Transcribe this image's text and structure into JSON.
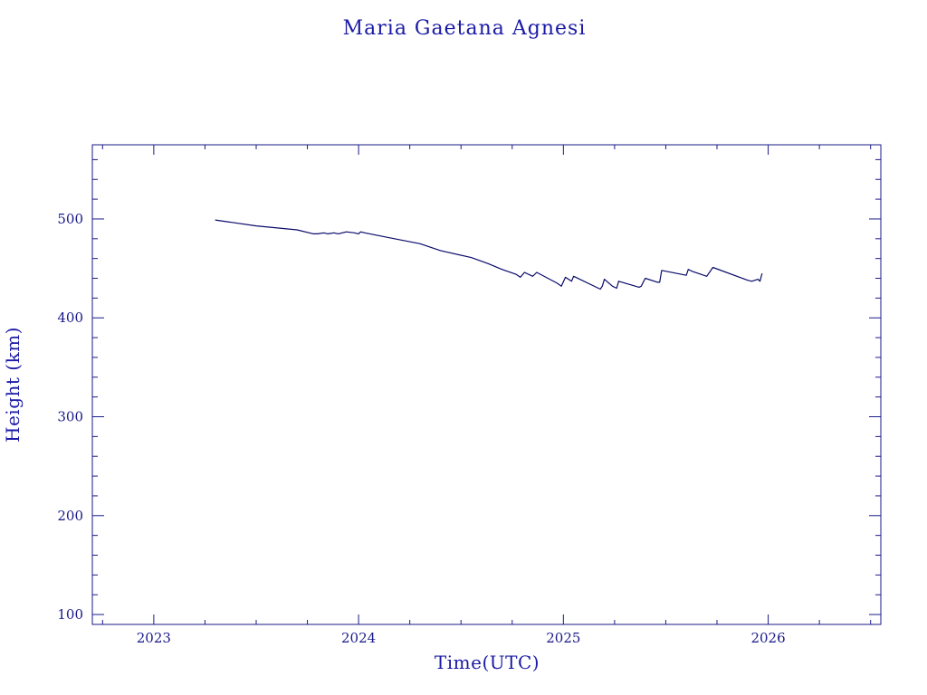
{
  "chart_data": {
    "type": "line",
    "title": "Maria Gaetana Agnesi",
    "xlabel": "Time(UTC)",
    "ylabel": "Height (km)",
    "xlim": [
      2022.7,
      2026.55
    ],
    "ylim": [
      90,
      575
    ],
    "x_ticks": [
      {
        "value": 2023,
        "label": "2023"
      },
      {
        "value": 2024,
        "label": "2024"
      },
      {
        "value": 2025,
        "label": "2025"
      },
      {
        "value": 2026,
        "label": "2026"
      }
    ],
    "y_ticks": [
      {
        "value": 100,
        "label": "100"
      },
      {
        "value": 200,
        "label": "200"
      },
      {
        "value": 300,
        "label": "300"
      },
      {
        "value": 400,
        "label": "400"
      },
      {
        "value": 500,
        "label": "500"
      }
    ],
    "grid": false,
    "colors": {
      "text": "#1a1aa6",
      "axis": "#1a1a8a",
      "line": "#0a0a6a"
    },
    "series": [
      {
        "x": [
          2023.3,
          2023.5,
          2023.7,
          2023.78,
          2023.8,
          2023.83,
          2023.85,
          2023.88,
          2023.9,
          2023.94,
          2023.98,
          2024.0,
          2024.01,
          2024.03,
          2024.15,
          2024.3,
          2024.4,
          2024.55,
          2024.63,
          2024.7,
          2024.77,
          2024.79,
          2024.81,
          2024.85,
          2024.87,
          2024.97,
          2024.99,
          2025.01,
          2025.04,
          2025.05,
          2025.18,
          2025.19,
          2025.2,
          2025.24,
          2025.26,
          2025.27,
          2025.37,
          2025.38,
          2025.4,
          2025.46,
          2025.47,
          2025.48,
          2025.6,
          2025.61,
          2025.63,
          2025.7,
          2025.73,
          2025.9,
          2025.92,
          2025.95,
          2025.96,
          2025.97
        ],
        "y": [
          499,
          493,
          489,
          485,
          485,
          486,
          485,
          486,
          485,
          487,
          486,
          485,
          487,
          486,
          481,
          475,
          468,
          461,
          455,
          449,
          444,
          441,
          446,
          442,
          446,
          435,
          432,
          441,
          437,
          442,
          429,
          432,
          439,
          432,
          430,
          437,
          431,
          432,
          440,
          436,
          436,
          448,
          443,
          449,
          447,
          442,
          451,
          438,
          437,
          439,
          437,
          445
        ]
      }
    ]
  }
}
